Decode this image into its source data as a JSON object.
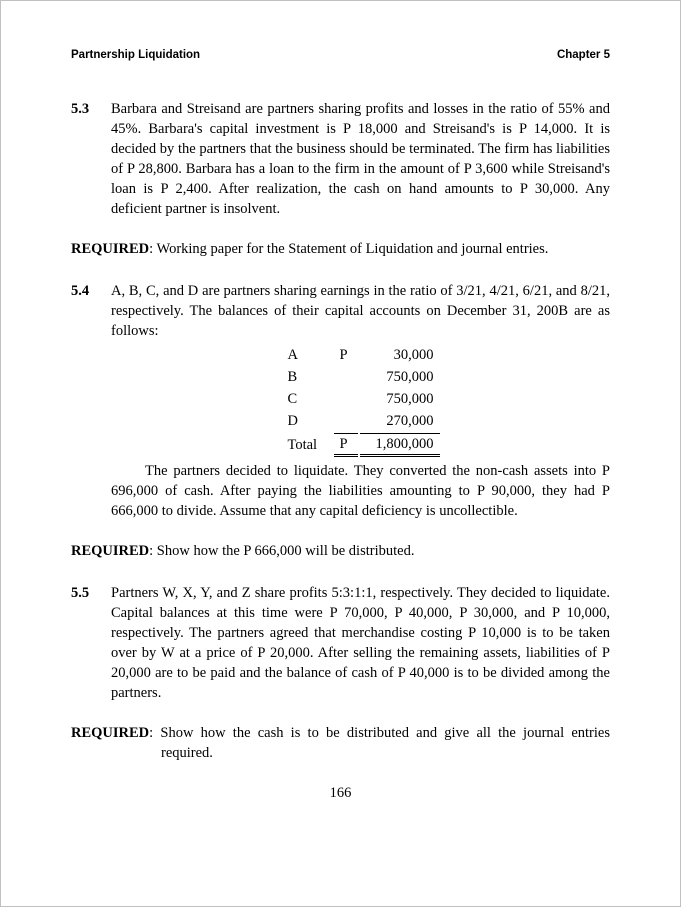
{
  "header": {
    "left": "Partnership Liquidation",
    "right": "Chapter 5"
  },
  "p53": {
    "num": "5.3",
    "text": "Barbara and Streisand are partners sharing profits and losses in the ratio of 55% and 45%. Barbara's capital investment is P 18,000 and Streisand's is P 14,000. It is decided by the partners that the business should be terminated. The firm has liabilities of P 28,800. Barbara has a loan to the firm in the amount of P 3,600 while Streisand's loan is P 2,400. After realization, the cash on hand amounts to P 30,000. Any deficient partner is insolvent."
  },
  "req53": {
    "label": "REQUIRED",
    "text": ": Working paper for the Statement of Liquidation and journal entries."
  },
  "p54": {
    "num": "5.4",
    "intro": "A, B, C, and D are partners sharing earnings in the ratio of 3/21, 4/21, 6/21, and 8/21, respectively. The balances of their capital accounts on December 31, 200B are as follows:",
    "balances": {
      "rows": [
        {
          "label": "A",
          "currency": "P",
          "value": "30,000"
        },
        {
          "label": "B",
          "currency": "",
          "value": "750,000"
        },
        {
          "label": "C",
          "currency": "",
          "value": "750,000"
        },
        {
          "label": "D",
          "currency": "",
          "value": "270,000"
        }
      ],
      "total": {
        "label": "Total",
        "currency": "P",
        "value": "1,800,000"
      }
    },
    "after1": "The partners decided to liquidate. They converted the non-cash assets into P 696,000 of cash. After paying the liabilities amounting to P 90,000, they had P 666,000 to divide. Assume that any capital deficiency is uncollectible."
  },
  "req54": {
    "label": "REQUIRED",
    "text": ": Show how the P 666,000 will be distributed."
  },
  "p55": {
    "num": "5.5",
    "text": "Partners W, X, Y, and Z share profits 5:3:1:1, respectively. They decided to liquidate. Capital balances at this time were P 70,000, P 40,000, P 30,000, and P 10,000, respectively. The partners agreed that merchandise costing P 10,000 is to be taken over by W at a price of P 20,000. After selling the remaining assets, liabilities of P 20,000 are to be paid and the balance of cash of P 40,000 is to be divided among the partners."
  },
  "req55": {
    "label": "REQUIRED",
    "text": ": Show how the cash is to be distributed and give all the journal entries required."
  },
  "page_number": "166"
}
